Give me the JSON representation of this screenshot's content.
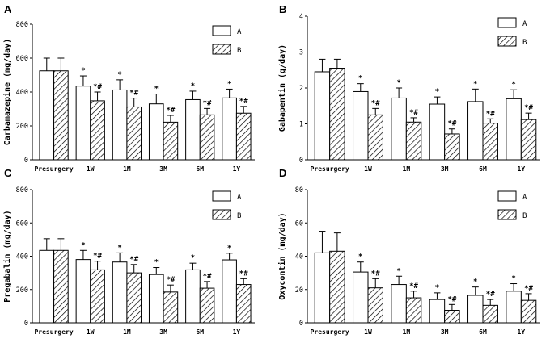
{
  "chart_data": [
    {
      "panel": "A",
      "type": "bar",
      "ylabel": "Carbamazepine (mg/day)",
      "ylim": [
        0,
        800
      ],
      "yticks": [
        "0",
        "200",
        "400",
        "600",
        "800"
      ],
      "categories": [
        "Presurgery",
        "1W",
        "1M",
        "3M",
        "6M",
        "1Y"
      ],
      "series": [
        {
          "name": "A",
          "values": [
            525,
            435,
            412,
            330,
            355,
            365
          ],
          "errors": [
            75,
            60,
            60,
            58,
            50,
            52
          ],
          "annotations": [
            "",
            "*",
            "*",
            "*",
            "*",
            "*"
          ]
        },
        {
          "name": "B",
          "values": [
            525,
            348,
            312,
            222,
            265,
            275
          ],
          "errors": [
            75,
            52,
            52,
            40,
            38,
            40
          ],
          "annotations": [
            "",
            "*#",
            "*#",
            "*#",
            "*#",
            "*#"
          ]
        }
      ]
    },
    {
      "panel": "B",
      "type": "bar",
      "ylabel": "Gabapentin (g/day)",
      "ylim": [
        0,
        4
      ],
      "yticks": [
        "0",
        "1",
        "2",
        "3",
        "4"
      ],
      "categories": [
        "Presurgery",
        "1W",
        "1M",
        "3M",
        "6M",
        "1Y"
      ],
      "series": [
        {
          "name": "A",
          "values": [
            2.45,
            1.9,
            1.72,
            1.55,
            1.62,
            1.7
          ],
          "errors": [
            0.35,
            0.22,
            0.28,
            0.2,
            0.35,
            0.25
          ],
          "annotations": [
            "",
            "*",
            "*",
            "*",
            "*",
            "*"
          ]
        },
        {
          "name": "B",
          "values": [
            2.55,
            1.25,
            1.05,
            0.72,
            1.02,
            1.12
          ],
          "errors": [
            0.25,
            0.18,
            0.12,
            0.14,
            0.12,
            0.18
          ],
          "annotations": [
            "",
            "*#",
            "*#",
            "*#",
            "*#",
            "*#"
          ]
        }
      ]
    },
    {
      "panel": "C",
      "type": "bar",
      "ylabel": "Pregabalin (mg/day)",
      "ylim": [
        0,
        800
      ],
      "yticks": [
        "0",
        "200",
        "400",
        "600",
        "800"
      ],
      "categories": [
        "Presurgery",
        "1W",
        "1M",
        "3M",
        "6M",
        "1Y"
      ],
      "series": [
        {
          "name": "A",
          "values": [
            435,
            380,
            365,
            290,
            318,
            378
          ],
          "errors": [
            70,
            55,
            55,
            42,
            40,
            40
          ],
          "annotations": [
            "",
            "*",
            "*",
            "*",
            "*",
            "*"
          ]
        },
        {
          "name": "B",
          "values": [
            435,
            318,
            300,
            185,
            208,
            230
          ],
          "errors": [
            70,
            52,
            50,
            42,
            40,
            35
          ],
          "annotations": [
            "",
            "*#",
            "*#",
            "*#",
            "*#",
            "*#"
          ]
        }
      ]
    },
    {
      "panel": "D",
      "type": "bar",
      "ylabel": "Oxycontin (mg/day)",
      "ylim": [
        0,
        80
      ],
      "yticks": [
        "0",
        "20",
        "40",
        "60",
        "80"
      ],
      "categories": [
        "Presurgery",
        "1W",
        "1M",
        "3M",
        "6M",
        "1Y"
      ],
      "series": [
        {
          "name": "A",
          "values": [
            42,
            30.5,
            23,
            14,
            16.5,
            19
          ],
          "errors": [
            13,
            6,
            5,
            4,
            5,
            4.5
          ],
          "annotations": [
            "",
            "*",
            "*",
            "*",
            "*",
            "*"
          ]
        },
        {
          "name": "B",
          "values": [
            43,
            21,
            15,
            7.5,
            10.5,
            13.5
          ],
          "errors": [
            11,
            5.5,
            4,
            3.5,
            3.5,
            4
          ],
          "annotations": [
            "",
            "*#",
            "*#",
            "*#",
            "*#",
            "*#"
          ]
        }
      ]
    }
  ]
}
